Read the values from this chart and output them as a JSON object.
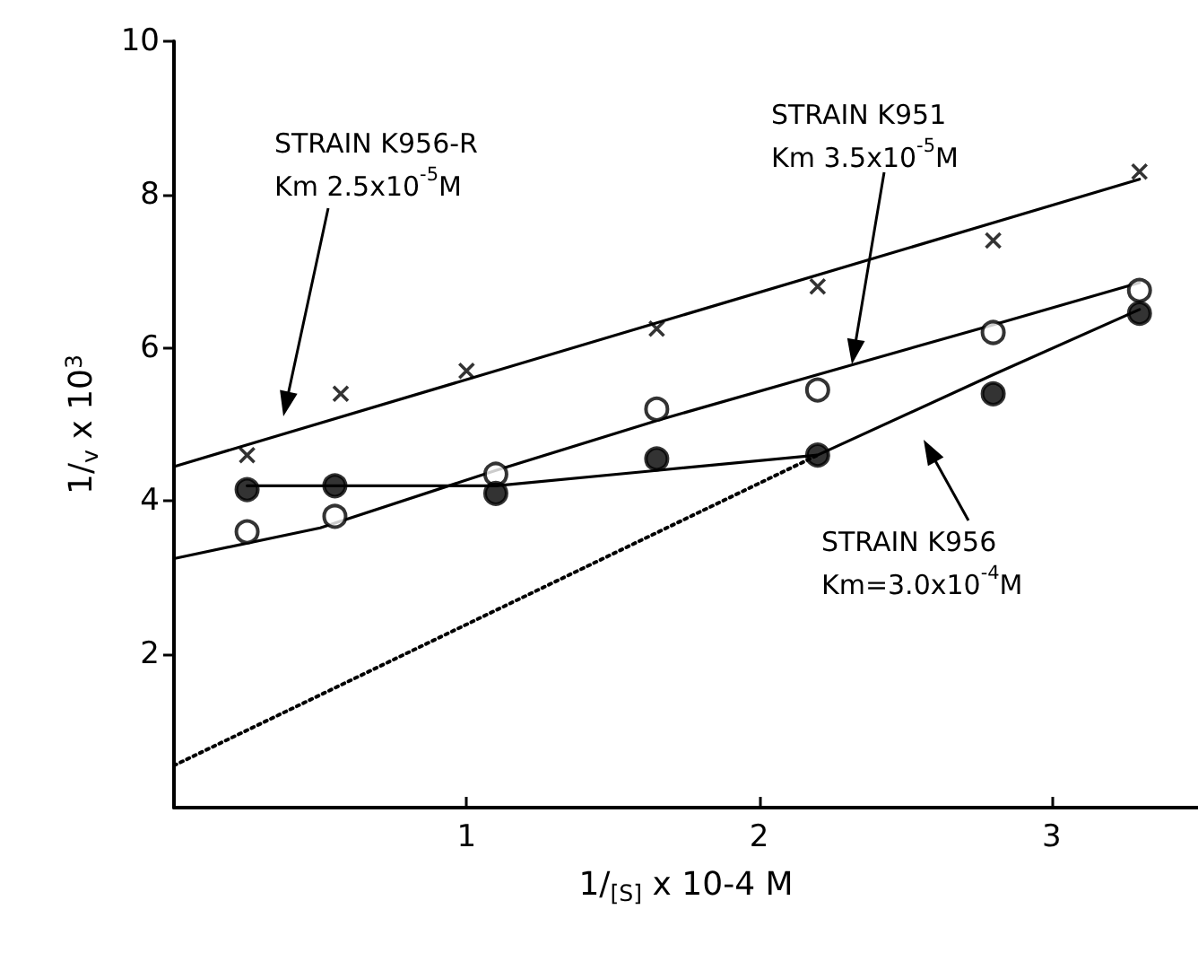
{
  "chart_data": {
    "type": "scatter",
    "xlabel": "1/$_{[S]}$ x 10-4 M",
    "ylabel": "1/$_{v}$ x 10$^{3}$",
    "xlim": [
      0,
      3.5
    ],
    "xticks": [
      1,
      2,
      3
    ],
    "ylim": [
      0,
      10
    ],
    "yticks": [
      2,
      4,
      6,
      8,
      10
    ],
    "grid": false,
    "series": [
      {
        "marker": "cross",
        "color": "#000000",
        "x": [
          0.25,
          0.57,
          1.0,
          1.65,
          2.2,
          2.8,
          3.3
        ],
        "values": [
          4.6,
          5.4,
          5.7,
          6.25,
          6.8,
          7.4,
          8.3
        ]
      },
      {
        "marker": "circle",
        "color": "#ffffff",
        "x": [
          0.25,
          0.55,
          1.1,
          1.65,
          2.2,
          2.8,
          3.3
        ],
        "values": [
          3.6,
          3.8,
          4.35,
          5.2,
          5.45,
          6.2,
          6.75
        ]
      },
      {
        "marker": "circle",
        "color": "#000000",
        "x": [
          0.25,
          0.55,
          1.1,
          1.65,
          2.2,
          2.8,
          3.3
        ],
        "values": [
          4.15,
          4.2,
          4.1,
          4.55,
          4.6,
          5.4,
          6.45
        ]
      },
      {
        "type": "line",
        "marker": "none",
        "line_style": "solid",
        "color": "#000000",
        "x": [
          0,
          3.3
        ],
        "values": [
          4.45,
          8.2
        ]
      },
      {
        "type": "line",
        "marker": "none",
        "line_style": "solid",
        "color": "#000000",
        "x": [
          0,
          0.5,
          1.1,
          1.65,
          2.2,
          2.8,
          3.3
        ],
        "values": [
          3.25,
          3.65,
          4.4,
          5.05,
          5.65,
          6.3,
          6.85
        ]
      },
      {
        "type": "line",
        "marker": "none",
        "line_style": "solid",
        "color": "#000000",
        "x": [
          0.25,
          0.55,
          1.1,
          1.65,
          2.2,
          2.8,
          3.3
        ],
        "values": [
          4.2,
          4.2,
          4.2,
          4.4,
          4.6,
          5.65,
          6.5
        ]
      },
      {
        "type": "line",
        "marker": "none",
        "line_style": "dotted",
        "color": "#000000",
        "x": [
          0,
          2.2
        ],
        "values": [
          0.55,
          4.6
        ]
      }
    ],
    "annotations": [
      "STRAIN K956-R\nKm 2.5x10$^{-5}$M",
      "STRAIN K951\nKm 3.5x10$^{-5}$M",
      "STRAIN K956\nKm=3.0x10$^{-4}$M"
    ]
  }
}
